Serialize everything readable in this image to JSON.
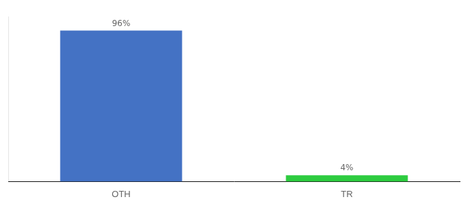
{
  "chart_data": {
    "type": "bar",
    "categories": [
      "OTH",
      "TR"
    ],
    "values": [
      96,
      4
    ],
    "value_labels": [
      "96%",
      "4%"
    ],
    "colors": [
      "#4472c4",
      "#2ecc40"
    ],
    "ylim": [
      0,
      105
    ],
    "grid": false,
    "data_labels": true,
    "tick_labels": "x"
  }
}
